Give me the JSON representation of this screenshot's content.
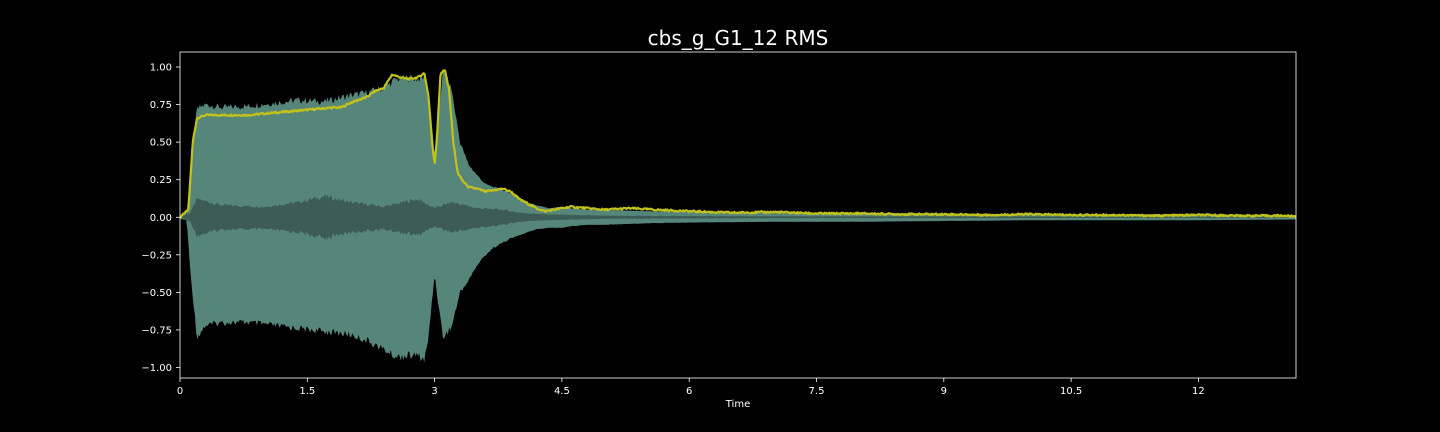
{
  "chart_data": {
    "type": "area",
    "title": "cbs_g_G1_12 RMS",
    "xlabel": "Time",
    "ylabel": "",
    "xlim": [
      0,
      13.15
    ],
    "ylim": [
      -1.07,
      1.1
    ],
    "x_ticks": [
      0,
      1.5,
      3,
      4.5,
      6,
      7.5,
      9,
      10.5,
      12
    ],
    "x_tick_labels": [
      "0",
      "1.5",
      "3",
      "4.5",
      "6",
      "7.5",
      "9",
      "10.5",
      "12"
    ],
    "y_ticks": [
      1.0,
      0.75,
      0.5,
      0.25,
      0.0,
      -0.25,
      -0.5,
      -0.75,
      -1.0
    ],
    "y_tick_labels": [
      "1.00",
      "0.75",
      "0.50",
      "0.25",
      "0.00",
      "−0.25",
      "−0.50",
      "−0.75",
      "−1.00"
    ],
    "grid": false,
    "colors": {
      "background": "#000000",
      "waveform": "#5f9487",
      "waveform_core": "#3d5c54",
      "rms": "#c2c21a",
      "axes": "#ffffff"
    },
    "series": [
      {
        "kind": "waveform_envelope",
        "x": [
          0,
          0.08,
          0.12,
          0.2,
          0.3,
          0.5,
          0.8,
          1.1,
          1.4,
          1.7,
          2.0,
          2.2,
          2.4,
          2.55,
          2.7,
          2.8,
          2.88,
          2.93,
          2.97,
          3.0,
          3.05,
          3.1,
          3.2,
          3.3,
          3.4,
          3.5,
          3.6,
          3.7,
          3.8,
          3.9,
          4.0,
          4.1,
          4.2,
          4.35,
          4.5,
          4.6,
          4.8,
          5.0,
          5.5,
          6.0,
          7.0,
          8.0,
          9.0,
          10.0,
          11.0,
          12.0,
          13.15
        ],
        "upper": [
          0.01,
          0.02,
          0.35,
          0.72,
          0.75,
          0.73,
          0.74,
          0.76,
          0.78,
          0.77,
          0.81,
          0.83,
          0.86,
          0.92,
          0.93,
          0.92,
          0.93,
          0.8,
          0.6,
          0.4,
          0.7,
          0.98,
          0.85,
          0.5,
          0.35,
          0.28,
          0.22,
          0.2,
          0.18,
          0.16,
          0.13,
          0.1,
          0.08,
          0.06,
          0.07,
          0.06,
          0.05,
          0.05,
          0.04,
          0.035,
          0.03,
          0.03,
          0.025,
          0.02,
          0.02,
          0.02,
          0.015
        ],
        "lower": [
          -0.01,
          -0.02,
          -0.35,
          -0.8,
          -0.72,
          -0.7,
          -0.7,
          -0.72,
          -0.74,
          -0.76,
          -0.78,
          -0.82,
          -0.88,
          -0.93,
          -0.92,
          -0.92,
          -0.95,
          -0.8,
          -0.55,
          -0.38,
          -0.6,
          -0.8,
          -0.73,
          -0.5,
          -0.42,
          -0.32,
          -0.25,
          -0.2,
          -0.17,
          -0.14,
          -0.12,
          -0.1,
          -0.08,
          -0.07,
          -0.07,
          -0.06,
          -0.05,
          -0.05,
          -0.04,
          -0.035,
          -0.03,
          -0.03,
          -0.025,
          -0.02,
          -0.02,
          -0.02,
          -0.015
        ]
      },
      {
        "kind": "waveform_core",
        "x": [
          0,
          0.12,
          0.2,
          0.5,
          1.0,
          1.4,
          1.7,
          2.0,
          2.4,
          2.8,
          3.0,
          3.2,
          3.5,
          3.8,
          4.0,
          4.3,
          4.6,
          5.0,
          6.0,
          8.0,
          10.0,
          13.15
        ],
        "upper": [
          0,
          0.03,
          0.12,
          0.08,
          0.07,
          0.1,
          0.14,
          0.1,
          0.07,
          0.12,
          0.06,
          0.1,
          0.06,
          0.05,
          0.03,
          0.02,
          0.015,
          0.01,
          0.008,
          0.006,
          0.005,
          0.003
        ],
        "lower": [
          0,
          -0.03,
          -0.12,
          -0.08,
          -0.08,
          -0.1,
          -0.14,
          -0.1,
          -0.08,
          -0.12,
          -0.06,
          -0.1,
          -0.07,
          -0.05,
          -0.03,
          -0.02,
          -0.015,
          -0.01,
          -0.008,
          -0.006,
          -0.005,
          -0.003
        ]
      },
      {
        "kind": "rms",
        "x": [
          0,
          0.1,
          0.15,
          0.2,
          0.3,
          0.5,
          0.8,
          1.0,
          1.2,
          1.4,
          1.6,
          1.8,
          1.9,
          2.0,
          2.1,
          2.2,
          2.3,
          2.4,
          2.5,
          2.6,
          2.7,
          2.8,
          2.88,
          2.93,
          2.97,
          3.0,
          3.03,
          3.07,
          3.12,
          3.17,
          3.22,
          3.27,
          3.32,
          3.4,
          3.5,
          3.6,
          3.7,
          3.8,
          3.9,
          4.0,
          4.1,
          4.2,
          4.3,
          4.4,
          4.5,
          4.6,
          4.8,
          5.0,
          5.3,
          5.6,
          6.0,
          6.5,
          7.0,
          7.5,
          8.0,
          8.5,
          9.0,
          9.5,
          10.0,
          10.5,
          11.0,
          11.5,
          12.0,
          12.5,
          13.0,
          13.15
        ],
        "y": [
          0.0,
          0.05,
          0.5,
          0.66,
          0.68,
          0.68,
          0.68,
          0.69,
          0.7,
          0.71,
          0.72,
          0.73,
          0.73,
          0.76,
          0.78,
          0.8,
          0.84,
          0.86,
          0.95,
          0.93,
          0.92,
          0.93,
          0.96,
          0.8,
          0.5,
          0.35,
          0.55,
          0.96,
          0.98,
          0.85,
          0.5,
          0.3,
          0.25,
          0.2,
          0.19,
          0.17,
          0.18,
          0.19,
          0.17,
          0.12,
          0.09,
          0.06,
          0.04,
          0.05,
          0.06,
          0.07,
          0.06,
          0.05,
          0.06,
          0.05,
          0.04,
          0.03,
          0.035,
          0.025,
          0.025,
          0.02,
          0.02,
          0.015,
          0.02,
          0.015,
          0.015,
          0.01,
          0.015,
          0.01,
          0.01,
          0.005
        ]
      }
    ]
  }
}
